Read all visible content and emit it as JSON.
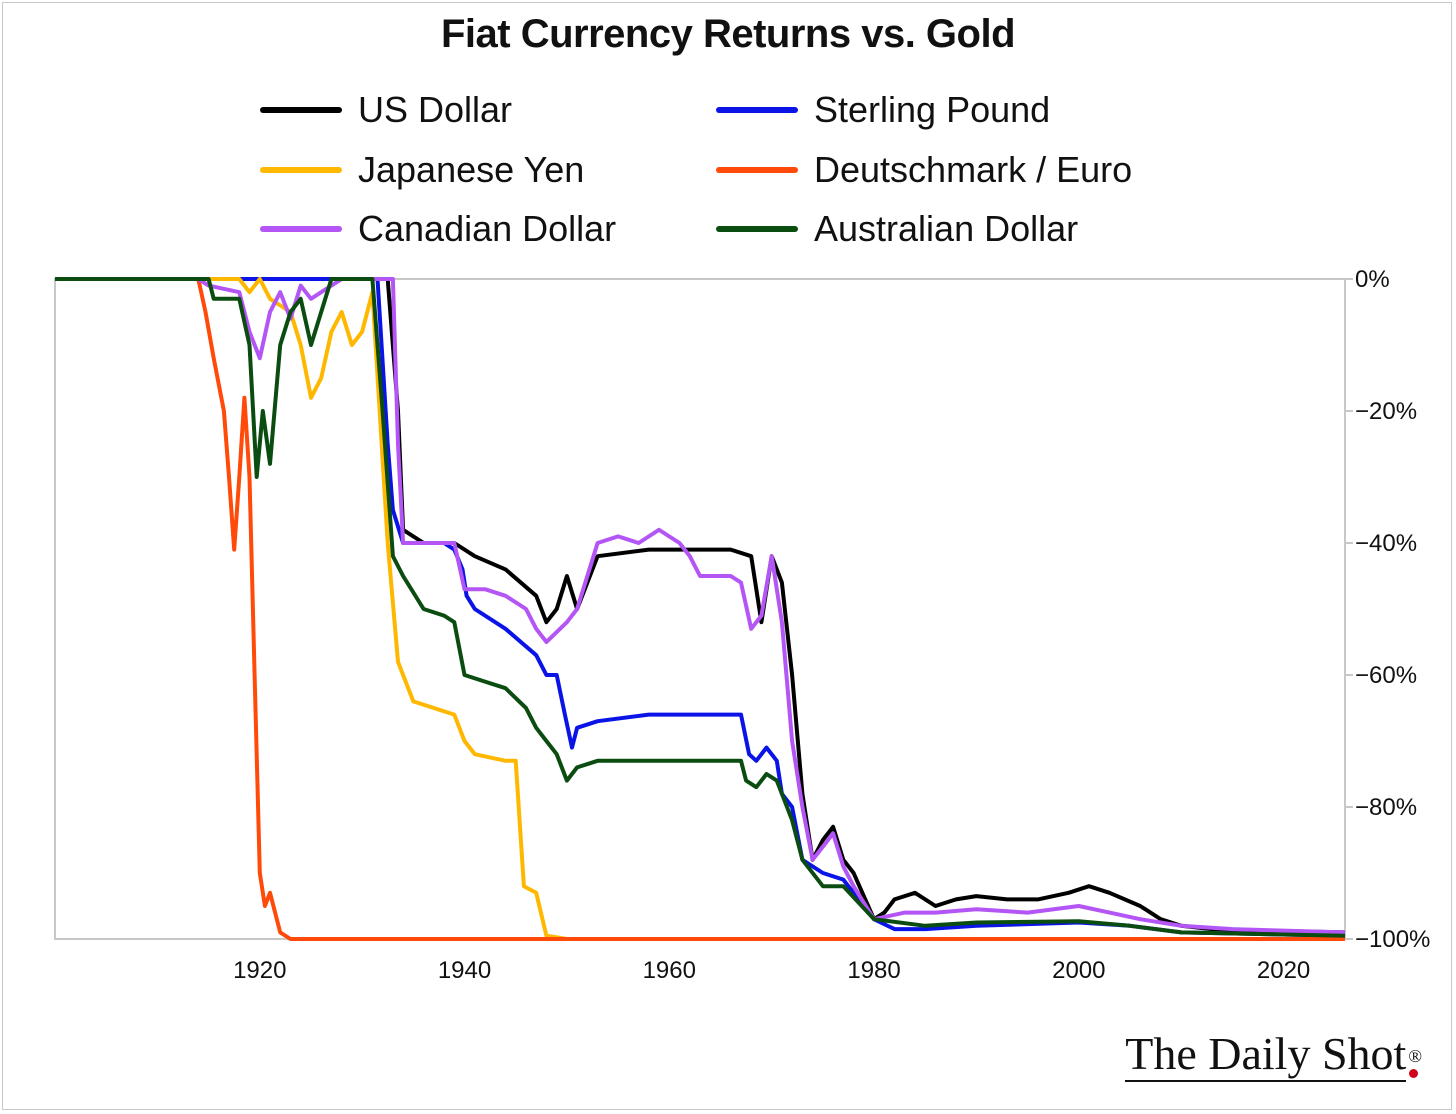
{
  "chart_data": {
    "type": "line",
    "title": "Fiat Currency Returns vs. Gold",
    "xlabel": "",
    "ylabel": "",
    "xlim": [
      1900,
      2026
    ],
    "ylim": [
      -100,
      0
    ],
    "x_ticks": [
      1920,
      1940,
      1960,
      1980,
      2000,
      2020
    ],
    "y_ticks": [
      0,
      -20,
      -40,
      -60,
      -80,
      -100
    ],
    "y_tick_labels": [
      "0%",
      "−20%",
      "−40%",
      "−60%",
      "−80%",
      "−100%"
    ],
    "y_axis_side": "right",
    "grid": false,
    "legend_position": "top",
    "series": [
      {
        "name": "US Dollar",
        "color": "#000000",
        "points": [
          [
            1900,
            0
          ],
          [
            1932.5,
            0
          ],
          [
            1933.5,
            -20
          ],
          [
            1934,
            -38
          ],
          [
            1936,
            -40
          ],
          [
            1939,
            -40
          ],
          [
            1941,
            -42
          ],
          [
            1944,
            -44
          ],
          [
            1947,
            -48
          ],
          [
            1948,
            -52
          ],
          [
            1949,
            -50
          ],
          [
            1950,
            -45
          ],
          [
            1951,
            -50
          ],
          [
            1953,
            -42
          ],
          [
            1958,
            -41
          ],
          [
            1966,
            -41
          ],
          [
            1968,
            -42
          ],
          [
            1969,
            -52
          ],
          [
            1970,
            -42
          ],
          [
            1971,
            -46
          ],
          [
            1972,
            -60
          ],
          [
            1973,
            -78
          ],
          [
            1974,
            -88
          ],
          [
            1975,
            -85
          ],
          [
            1976,
            -83
          ],
          [
            1977,
            -88
          ],
          [
            1978,
            -90
          ],
          [
            1980,
            -97
          ],
          [
            1981,
            -96
          ],
          [
            1982,
            -94
          ],
          [
            1984,
            -93
          ],
          [
            1986,
            -95
          ],
          [
            1988,
            -94
          ],
          [
            1990,
            -93.5
          ],
          [
            1993,
            -94
          ],
          [
            1996,
            -94
          ],
          [
            1999,
            -93
          ],
          [
            2001,
            -92
          ],
          [
            2003,
            -93
          ],
          [
            2006,
            -95
          ],
          [
            2008,
            -97
          ],
          [
            2010,
            -98
          ],
          [
            2013,
            -98.5
          ],
          [
            2020,
            -98.8
          ],
          [
            2026,
            -99
          ]
        ]
      },
      {
        "name": "Sterling Pound",
        "color": "#0a14e6",
        "points": [
          [
            1900,
            0
          ],
          [
            1931.5,
            0
          ],
          [
            1932.5,
            -25
          ],
          [
            1933,
            -35
          ],
          [
            1934,
            -40
          ],
          [
            1938,
            -40
          ],
          [
            1939,
            -41
          ],
          [
            1939.8,
            -44
          ],
          [
            1940.2,
            -48
          ],
          [
            1941,
            -50
          ],
          [
            1944,
            -53
          ],
          [
            1947,
            -57
          ],
          [
            1948,
            -60
          ],
          [
            1949,
            -60
          ],
          [
            1949.8,
            -66
          ],
          [
            1950.5,
            -71
          ],
          [
            1951,
            -68
          ],
          [
            1953,
            -67
          ],
          [
            1958,
            -66
          ],
          [
            1967,
            -66
          ],
          [
            1967.8,
            -72
          ],
          [
            1968.5,
            -73
          ],
          [
            1969.5,
            -71
          ],
          [
            1970.5,
            -73
          ],
          [
            1971,
            -78
          ],
          [
            1972,
            -80
          ],
          [
            1973,
            -88
          ],
          [
            1975,
            -90
          ],
          [
            1977,
            -91
          ],
          [
            1980,
            -97
          ],
          [
            1982,
            -98.5
          ],
          [
            1985,
            -98.5
          ],
          [
            1990,
            -98
          ],
          [
            2000,
            -97.5
          ],
          [
            2005,
            -98
          ],
          [
            2010,
            -99
          ],
          [
            2026,
            -99.5
          ]
        ]
      },
      {
        "name": "Japanese Yen",
        "color": "#ffb800",
        "points": [
          [
            1900,
            0
          ],
          [
            1904,
            0
          ],
          [
            1910,
            0
          ],
          [
            1918,
            0
          ],
          [
            1919,
            -2
          ],
          [
            1920,
            0
          ],
          [
            1921,
            -3
          ],
          [
            1923,
            -5
          ],
          [
            1924,
            -10
          ],
          [
            1925,
            -18
          ],
          [
            1926,
            -15
          ],
          [
            1927,
            -8
          ],
          [
            1928,
            -5
          ],
          [
            1929,
            -10
          ],
          [
            1930,
            -8
          ],
          [
            1931,
            -2
          ],
          [
            1932.5,
            -40
          ],
          [
            1933.5,
            -58
          ],
          [
            1935,
            -64
          ],
          [
            1937,
            -65
          ],
          [
            1939,
            -66
          ],
          [
            1940,
            -70
          ],
          [
            1941,
            -72
          ],
          [
            1944,
            -73
          ],
          [
            1945,
            -73
          ],
          [
            1945.8,
            -92
          ],
          [
            1947,
            -93
          ],
          [
            1948,
            -99.5
          ],
          [
            1950,
            -100
          ],
          [
            2026,
            -100
          ]
        ]
      },
      {
        "name": "Deutschmark / Euro",
        "color": "#ff4a0a",
        "points": [
          [
            1900,
            0
          ],
          [
            1914,
            0
          ],
          [
            1914.7,
            -5
          ],
          [
            1915.5,
            -12
          ],
          [
            1916.5,
            -20
          ],
          [
            1917,
            -30
          ],
          [
            1917.5,
            -41
          ],
          [
            1918,
            -30
          ],
          [
            1918.5,
            -18
          ],
          [
            1919,
            -30
          ],
          [
            1919.5,
            -60
          ],
          [
            1920,
            -90
          ],
          [
            1920.5,
            -95
          ],
          [
            1921,
            -93
          ],
          [
            1922,
            -99
          ],
          [
            1923,
            -100
          ],
          [
            2026,
            -100
          ]
        ]
      },
      {
        "name": "Canadian Dollar",
        "color": "#b455f5",
        "points": [
          [
            1900,
            0
          ],
          [
            1914,
            0
          ],
          [
            1915,
            -1
          ],
          [
            1918,
            -2
          ],
          [
            1919,
            -8
          ],
          [
            1920,
            -12
          ],
          [
            1921,
            -5
          ],
          [
            1922,
            -2
          ],
          [
            1923,
            -6
          ],
          [
            1924,
            -1
          ],
          [
            1925,
            -3
          ],
          [
            1926,
            -2
          ],
          [
            1928,
            0
          ],
          [
            1933,
            0
          ],
          [
            1933.5,
            -25
          ],
          [
            1934,
            -40
          ],
          [
            1937,
            -40
          ],
          [
            1939,
            -40
          ],
          [
            1940,
            -47
          ],
          [
            1942,
            -47
          ],
          [
            1944,
            -48
          ],
          [
            1946,
            -50
          ],
          [
            1947,
            -53
          ],
          [
            1948,
            -55
          ],
          [
            1950,
            -52
          ],
          [
            1951,
            -50
          ],
          [
            1953,
            -40
          ],
          [
            1955,
            -39
          ],
          [
            1957,
            -40
          ],
          [
            1959,
            -38
          ],
          [
            1961,
            -40
          ],
          [
            1962,
            -42
          ],
          [
            1963,
            -45
          ],
          [
            1966,
            -45
          ],
          [
            1967,
            -46
          ],
          [
            1968,
            -53
          ],
          [
            1969,
            -51
          ],
          [
            1970,
            -42
          ],
          [
            1971,
            -52
          ],
          [
            1972,
            -70
          ],
          [
            1973,
            -80
          ],
          [
            1974,
            -88
          ],
          [
            1975,
            -86
          ],
          [
            1976,
            -84
          ],
          [
            1977,
            -89
          ],
          [
            1978,
            -92
          ],
          [
            1980,
            -97
          ],
          [
            1983,
            -96
          ],
          [
            1986,
            -96
          ],
          [
            1990,
            -95.5
          ],
          [
            1995,
            -96
          ],
          [
            2000,
            -95
          ],
          [
            2003,
            -96
          ],
          [
            2006,
            -97
          ],
          [
            2010,
            -98
          ],
          [
            2015,
            -98.5
          ],
          [
            2026,
            -99
          ]
        ]
      },
      {
        "name": "Australian Dollar",
        "color": "#0b4d10",
        "points": [
          [
            1900,
            0
          ],
          [
            1915,
            0
          ],
          [
            1915.5,
            -3
          ],
          [
            1918,
            -3
          ],
          [
            1919,
            -10
          ],
          [
            1919.7,
            -30
          ],
          [
            1920.3,
            -20
          ],
          [
            1921,
            -28
          ],
          [
            1922,
            -10
          ],
          [
            1923,
            -5
          ],
          [
            1924,
            -3
          ],
          [
            1925,
            -10
          ],
          [
            1926,
            -5
          ],
          [
            1927,
            0
          ],
          [
            1931,
            0
          ],
          [
            1931.5,
            -10
          ],
          [
            1932,
            -20
          ],
          [
            1933,
            -42
          ],
          [
            1934,
            -45
          ],
          [
            1936,
            -50
          ],
          [
            1938,
            -51
          ],
          [
            1939,
            -52
          ],
          [
            1940,
            -60
          ],
          [
            1942,
            -61
          ],
          [
            1944,
            -62
          ],
          [
            1946,
            -65
          ],
          [
            1947,
            -68
          ],
          [
            1948,
            -70
          ],
          [
            1949,
            -72
          ],
          [
            1950,
            -76
          ],
          [
            1951,
            -74
          ],
          [
            1953,
            -73
          ],
          [
            1958,
            -73
          ],
          [
            1967,
            -73
          ],
          [
            1967.5,
            -76
          ],
          [
            1968.5,
            -77
          ],
          [
            1969.5,
            -75
          ],
          [
            1970.5,
            -76
          ],
          [
            1971,
            -78
          ],
          [
            1972,
            -82
          ],
          [
            1973,
            -88
          ],
          [
            1975,
            -92
          ],
          [
            1977,
            -92
          ],
          [
            1980,
            -97
          ],
          [
            1985,
            -98
          ],
          [
            1990,
            -97.5
          ],
          [
            2000,
            -97.3
          ],
          [
            2005,
            -98
          ],
          [
            2010,
            -99
          ],
          [
            2026,
            -99.5
          ]
        ]
      }
    ]
  },
  "legend": [
    {
      "label": "US Dollar",
      "color": "#000000"
    },
    {
      "label": "Sterling Pound",
      "color": "#0a14e6"
    },
    {
      "label": "Japanese Yen",
      "color": "#ffb800"
    },
    {
      "label": "Deutschmark / Euro",
      "color": "#ff4a0a"
    },
    {
      "label": "Canadian Dollar",
      "color": "#b455f5"
    },
    {
      "label": "Australian Dollar",
      "color": "#0b4d10"
    }
  ],
  "brand": {
    "name": "The Daily Shot",
    "mark": "®"
  }
}
